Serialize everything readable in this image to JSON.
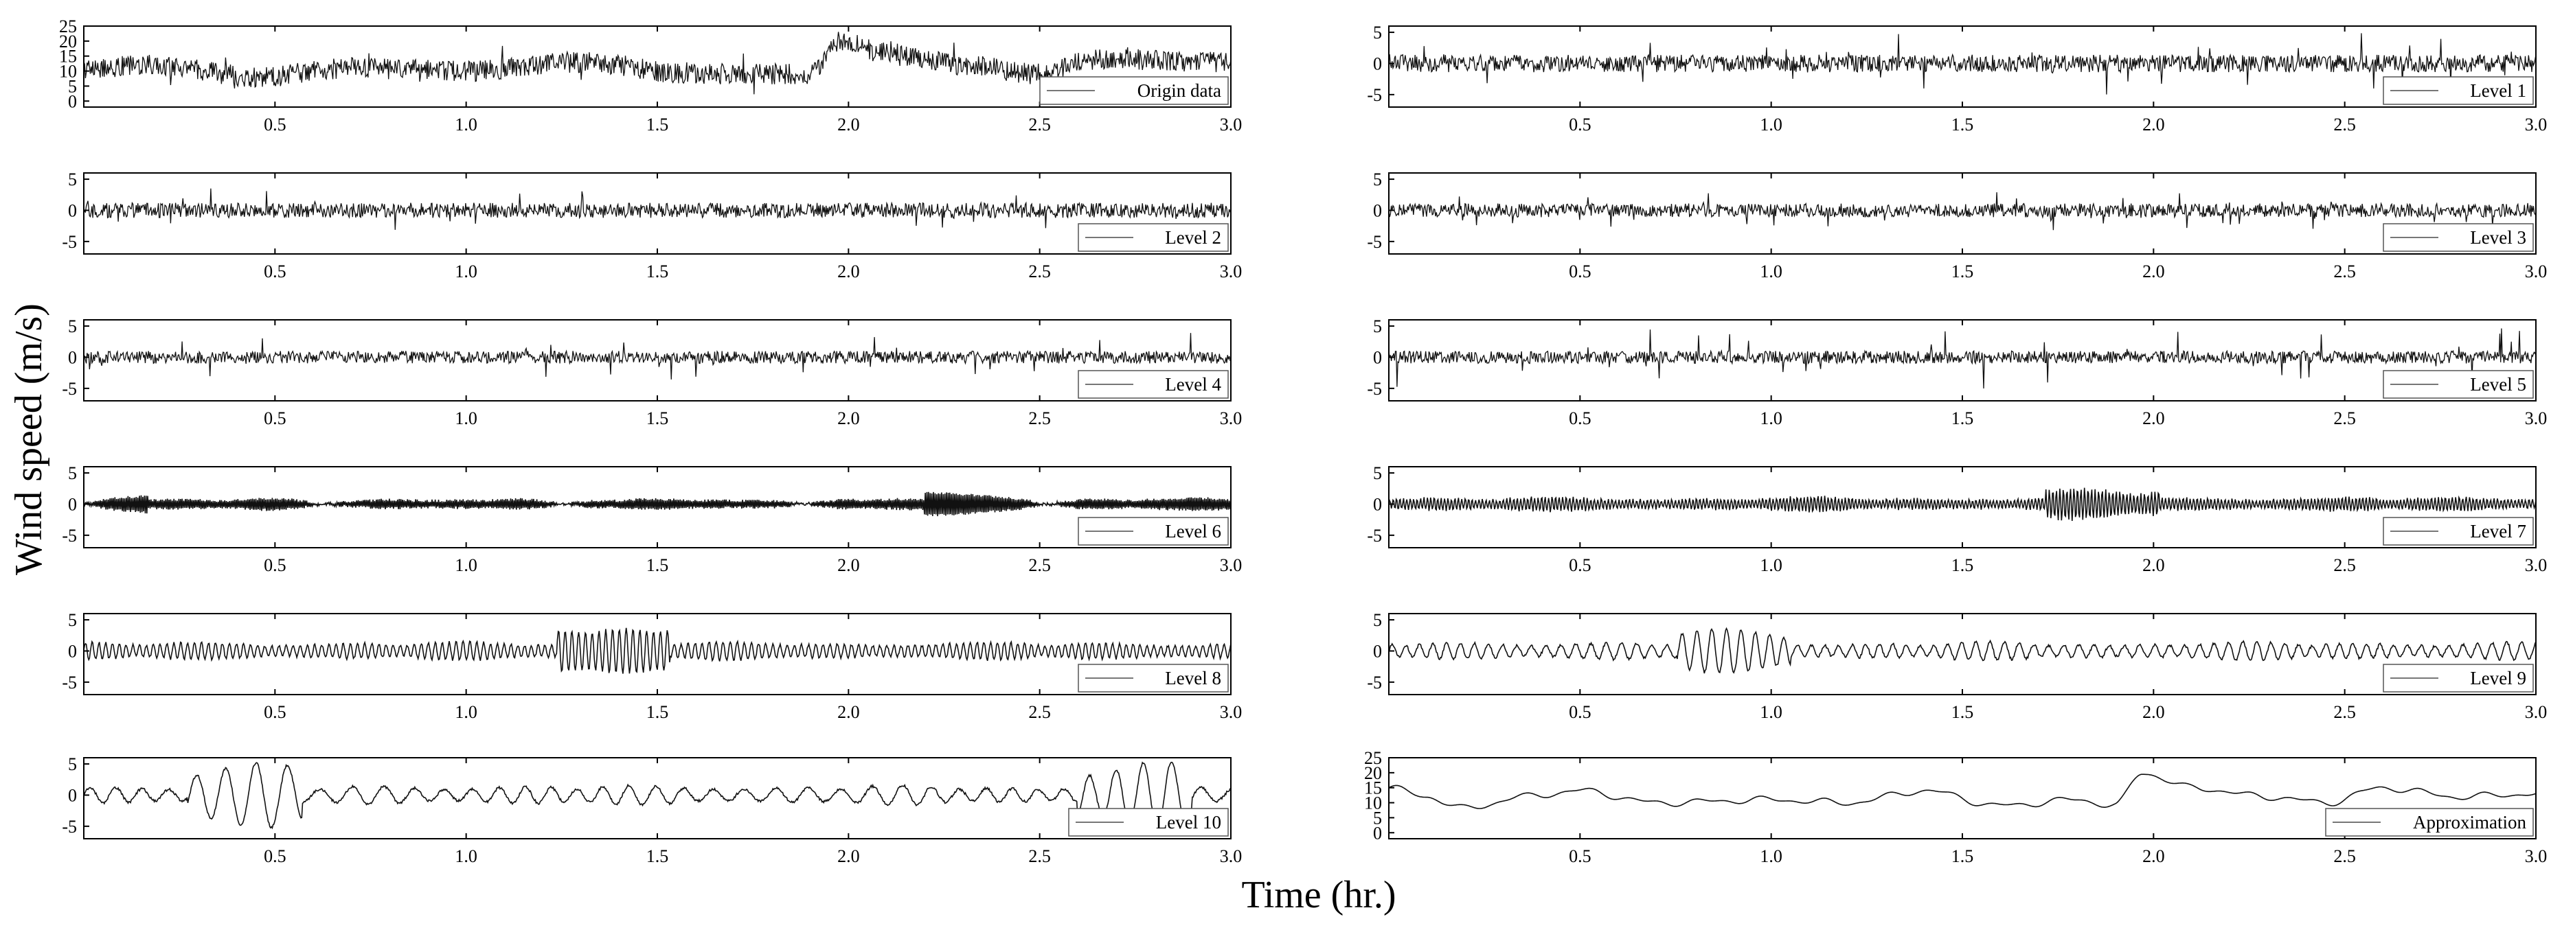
{
  "figure": {
    "ylabel": "Wind speed (m/s)",
    "xlabel": "Time (hr.)"
  },
  "chart_data": [
    {
      "type": "line",
      "legend": "Origin data",
      "signal": "noisy",
      "base": 11,
      "amp": 4,
      "noise": 3.5,
      "drift": [
        [
          0.0,
          11
        ],
        [
          0.2,
          12
        ],
        [
          0.45,
          8
        ],
        [
          0.7,
          11
        ],
        [
          1.0,
          10
        ],
        [
          1.3,
          13
        ],
        [
          1.6,
          9
        ],
        [
          1.9,
          9
        ],
        [
          1.97,
          20
        ],
        [
          2.1,
          16
        ],
        [
          2.3,
          12
        ],
        [
          2.5,
          9
        ],
        [
          2.65,
          14
        ],
        [
          3.0,
          13
        ]
      ],
      "xlim": [
        0,
        3.0
      ],
      "ylim": [
        -2,
        25
      ],
      "yticks": [
        0,
        5,
        10,
        15,
        20,
        25
      ],
      "xticks": [
        0.5,
        1.0,
        1.5,
        2.0,
        2.5,
        3.0
      ],
      "legend_position": "bottom-right"
    },
    {
      "type": "line",
      "legend": "Level 1",
      "signal": "noise",
      "amp": 1.4,
      "spikes": 4.5,
      "xlim": [
        0,
        3.0
      ],
      "ylim": [
        -7,
        6
      ],
      "yticks": [
        -5,
        0,
        5
      ],
      "xticks": [
        0.5,
        1.0,
        1.5,
        2.0,
        2.5,
        3.0
      ],
      "legend_position": "bottom-right"
    },
    {
      "type": "line",
      "legend": "Level 2",
      "signal": "noise",
      "amp": 1.2,
      "spikes": 3.0,
      "xlim": [
        0,
        3.0
      ],
      "ylim": [
        -7,
        6
      ],
      "yticks": [
        -5,
        0,
        5
      ],
      "xticks": [
        0.5,
        1.0,
        1.5,
        2.0,
        2.5,
        3.0
      ],
      "legend_position": "bottom-right"
    },
    {
      "type": "line",
      "legend": "Level 3",
      "signal": "noise",
      "amp": 1.1,
      "spikes": 2.5,
      "xlim": [
        0,
        3.0
      ],
      "ylim": [
        -7,
        6
      ],
      "yticks": [
        -5,
        0,
        5
      ],
      "xticks": [
        0.5,
        1.0,
        1.5,
        2.0,
        2.5,
        3.0
      ],
      "legend_position": "bottom-right"
    },
    {
      "type": "line",
      "legend": "Level 4",
      "signal": "noise",
      "amp": 1.0,
      "spikes": 3.5,
      "xlim": [
        0,
        3.0
      ],
      "ylim": [
        -7,
        6
      ],
      "yticks": [
        -5,
        0,
        5
      ],
      "xticks": [
        0.5,
        1.0,
        1.5,
        2.0,
        2.5,
        3.0
      ],
      "legend_position": "bottom-right"
    },
    {
      "type": "line",
      "legend": "Level 5",
      "signal": "noise",
      "amp": 1.0,
      "spikes": 4.5,
      "xlim": [
        0,
        3.0
      ],
      "ylim": [
        -7,
        6
      ],
      "yticks": [
        -5,
        0,
        5
      ],
      "xticks": [
        0.5,
        1.0,
        1.5,
        2.0,
        2.5,
        3.0
      ],
      "legend_position": "bottom-right"
    },
    {
      "type": "line",
      "legend": "Level 6",
      "signal": "osc",
      "cycles": 700,
      "amp": 1.0,
      "burst": 2.2,
      "xlim": [
        0,
        3.0
      ],
      "ylim": [
        -7,
        6
      ],
      "yticks": [
        -5,
        0,
        5
      ],
      "xticks": [
        0.5,
        1.0,
        1.5,
        2.0,
        2.5,
        3.0
      ],
      "legend_position": "bottom-right"
    },
    {
      "type": "line",
      "legend": "Level 7",
      "signal": "osc",
      "cycles": 330,
      "amp": 1.2,
      "burst": 2.2,
      "xlim": [
        0,
        3.0
      ],
      "ylim": [
        -7,
        6
      ],
      "yticks": [
        -5,
        0,
        5
      ],
      "xticks": [
        0.5,
        1.0,
        1.5,
        2.0,
        2.5,
        3.0
      ],
      "legend_position": "bottom-right"
    },
    {
      "type": "line",
      "legend": "Level 8",
      "signal": "osc",
      "cycles": 165,
      "amp": 1.5,
      "burst": 3.5,
      "xlim": [
        0,
        3.0
      ],
      "ylim": [
        -7,
        6
      ],
      "yticks": [
        -5,
        0,
        5
      ],
      "xticks": [
        0.5,
        1.0,
        1.5,
        2.0,
        2.5,
        3.0
      ],
      "legend_position": "bottom-right"
    },
    {
      "type": "line",
      "legend": "Level 9",
      "signal": "osc",
      "cycles": 80,
      "amp": 1.5,
      "burst": 2.5,
      "xlim": [
        0,
        3.0
      ],
      "ylim": [
        -7,
        6
      ],
      "yticks": [
        -5,
        0,
        5
      ],
      "xticks": [
        0.5,
        1.0,
        1.5,
        2.0,
        2.5,
        3.0
      ],
      "legend_position": "bottom-right"
    },
    {
      "type": "line",
      "legend": "Level 10",
      "signal": "osc",
      "cycles": 40,
      "amp": 1.6,
      "burst": 3.5,
      "xlim": [
        0,
        3.0
      ],
      "ylim": [
        -7,
        6
      ],
      "yticks": [
        -5,
        0,
        5
      ],
      "xticks": [
        0.5,
        1.0,
        1.5,
        2.0,
        2.5,
        3.0
      ],
      "legend_position": "bottom-right"
    },
    {
      "type": "line",
      "legend": "Approximation",
      "signal": "smooth",
      "drift": [
        [
          0.0,
          15
        ],
        [
          0.1,
          12
        ],
        [
          0.2,
          8
        ],
        [
          0.35,
          12
        ],
        [
          0.5,
          14
        ],
        [
          0.7,
          10
        ],
        [
          1.0,
          11
        ],
        [
          1.2,
          10
        ],
        [
          1.4,
          14
        ],
        [
          1.6,
          9
        ],
        [
          1.8,
          11
        ],
        [
          1.9,
          9
        ],
        [
          1.97,
          20
        ],
        [
          2.1,
          15
        ],
        [
          2.3,
          12
        ],
        [
          2.45,
          10
        ],
        [
          2.6,
          15
        ],
        [
          2.8,
          12
        ],
        [
          3.0,
          13
        ]
      ],
      "xlim": [
        0,
        3.0
      ],
      "ylim": [
        -2,
        25
      ],
      "yticks": [
        0,
        5,
        10,
        15,
        20,
        25
      ],
      "xticks": [
        0.5,
        1.0,
        1.5,
        2.0,
        2.5,
        3.0
      ],
      "legend_position": "bottom-right"
    }
  ]
}
